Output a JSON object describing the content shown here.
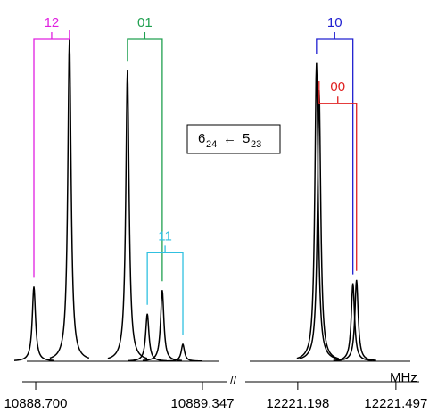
{
  "chart_data": {
    "type": "spectrum",
    "unit": "MHz",
    "ylim": [
      0,
      1
    ],
    "transition": {
      "upper": "6",
      "upper_sub": "24",
      "arrow": "←",
      "lower": "5",
      "lower_sub": "23"
    },
    "panels": [
      {
        "xlim": [
          10888.648,
          10889.444
        ],
        "xticks": [
          {
            "value": 10888.7,
            "label": "10888.700"
          },
          10889.347
        ],
        "peaks": [
          {
            "x": 10888.693,
            "y": 0.22
          },
          {
            "x": 10888.831,
            "y": 0.95
          },
          {
            "x": 10889.056,
            "y": 0.86
          },
          {
            "x": 10889.133,
            "y": 0.14
          },
          {
            "x": 10889.191,
            "y": 0.21
          },
          {
            "x": 10889.271,
            "y": 0.05
          }
        ],
        "annotations": [
          {
            "text": "12",
            "color": "#e020e0",
            "x": [
              10888.693,
              10888.831
            ],
            "y": 0.95
          },
          {
            "text": "01",
            "color": "#20a050",
            "x": [
              10889.056,
              10889.191
            ],
            "y": 0.95
          },
          {
            "text": "11",
            "color": "#30c0e0",
            "x": [
              10889.133,
              10889.271
            ],
            "y": 0.32
          }
        ]
      },
      {
        "xlim": [
          12221.038,
          12221.568
        ],
        "xticks": [
          12221.198,
          12221.497
        ],
        "peaks": [
          {
            "x": 12221.255,
            "y": 0.88
          },
          {
            "x": 12221.263,
            "y": 0.8
          },
          {
            "x": 12221.366,
            "y": 0.23
          },
          {
            "x": 12221.377,
            "y": 0.24
          }
        ],
        "annotations": [
          {
            "text": "10",
            "color": "#2020d0",
            "x": [
              12221.255,
              12221.366
            ],
            "y": 0.95
          },
          {
            "text": "00",
            "color": "#e02020",
            "x": [
              12221.263,
              12221.377
            ],
            "y": 0.76
          }
        ]
      }
    ]
  }
}
